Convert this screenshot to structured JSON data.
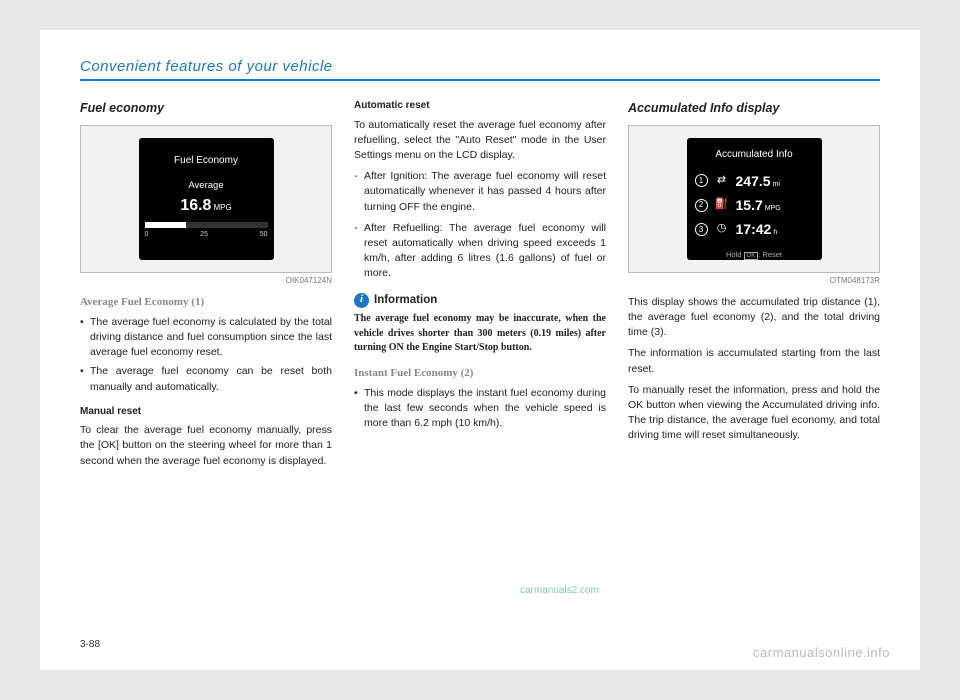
{
  "header": {
    "section": "Convenient features of your vehicle"
  },
  "page_number": "3-88",
  "watermarks": {
    "green": "carmanuals2.com",
    "gray": "carmanualsonline.info"
  },
  "col1": {
    "title": "Fuel economy",
    "screen_code": "OIK047124N",
    "screen": {
      "label": "Fuel Economy",
      "avg_label": "Average",
      "value": "16.8",
      "unit": "MPG",
      "ticks": [
        "0",
        "25",
        "50"
      ],
      "fill_pct": 34
    },
    "avg_title": "Average Fuel Economy (1)",
    "bullets": [
      "The average fuel economy is calculated by the total driving distance and fuel consumption since the last average fuel economy reset.",
      "The average fuel economy can be reset both manually and automatically."
    ],
    "manual_title": "Manual reset",
    "manual_body": "To clear the average fuel economy manually, press the [OK] button on the steering wheel for more than 1 second when the average fuel economy is displayed."
  },
  "col2": {
    "auto_title": "Automatic reset",
    "auto_body": "To automatically reset the average fuel economy after refuelling, select the \"Auto Reset\" mode in the User Settings menu on the LCD display.",
    "dashes": [
      "After Ignition: The average fuel economy will reset automatically whenever it has passed 4 hours after turning OFF the engine.",
      "After Refuelling: The average fuel economy will reset automatically when driving speed exceeds 1 km/h, after adding 6 litres (1.6 gallons) of fuel or more."
    ],
    "info_label": "Information",
    "info_body": "The average fuel economy may be inaccurate, when the vehicle drives shorter than 300 meters (0.19 miles) after turning ON the Engine Start/Stop button.",
    "instant_title": "Instant Fuel Economy (2)",
    "instant_bullet": "This mode displays the instant fuel economy during the last few seconds when the vehicle speed is more than 6.2 mph (10 km/h)."
  },
  "col3": {
    "title": "Accumulated Info display",
    "screen_code": "OTM048173R",
    "screen": {
      "title": "Accumulated Info",
      "rows": [
        {
          "n": "1",
          "icon": "⇄",
          "val": "247.5",
          "unit": "mi"
        },
        {
          "n": "2",
          "icon": "⛽",
          "val": "15.7",
          "unit": "MPG"
        },
        {
          "n": "3",
          "icon": "◷",
          "val": "17:42",
          "unit": "h"
        }
      ],
      "hold_prefix": "Hold",
      "hold_ok": "OK",
      "hold_suffix": ": Reset"
    },
    "p1": "This display shows the accumulated trip distance (1), the average fuel economy (2), and the total driving time (3).",
    "p2": "The information is accumulated starting from the last reset.",
    "p3": "To manually reset the information, press and hold the OK button when viewing the Accumulated driving info. The trip distance, the average fuel economy, and total driving time will reset simultaneously."
  }
}
